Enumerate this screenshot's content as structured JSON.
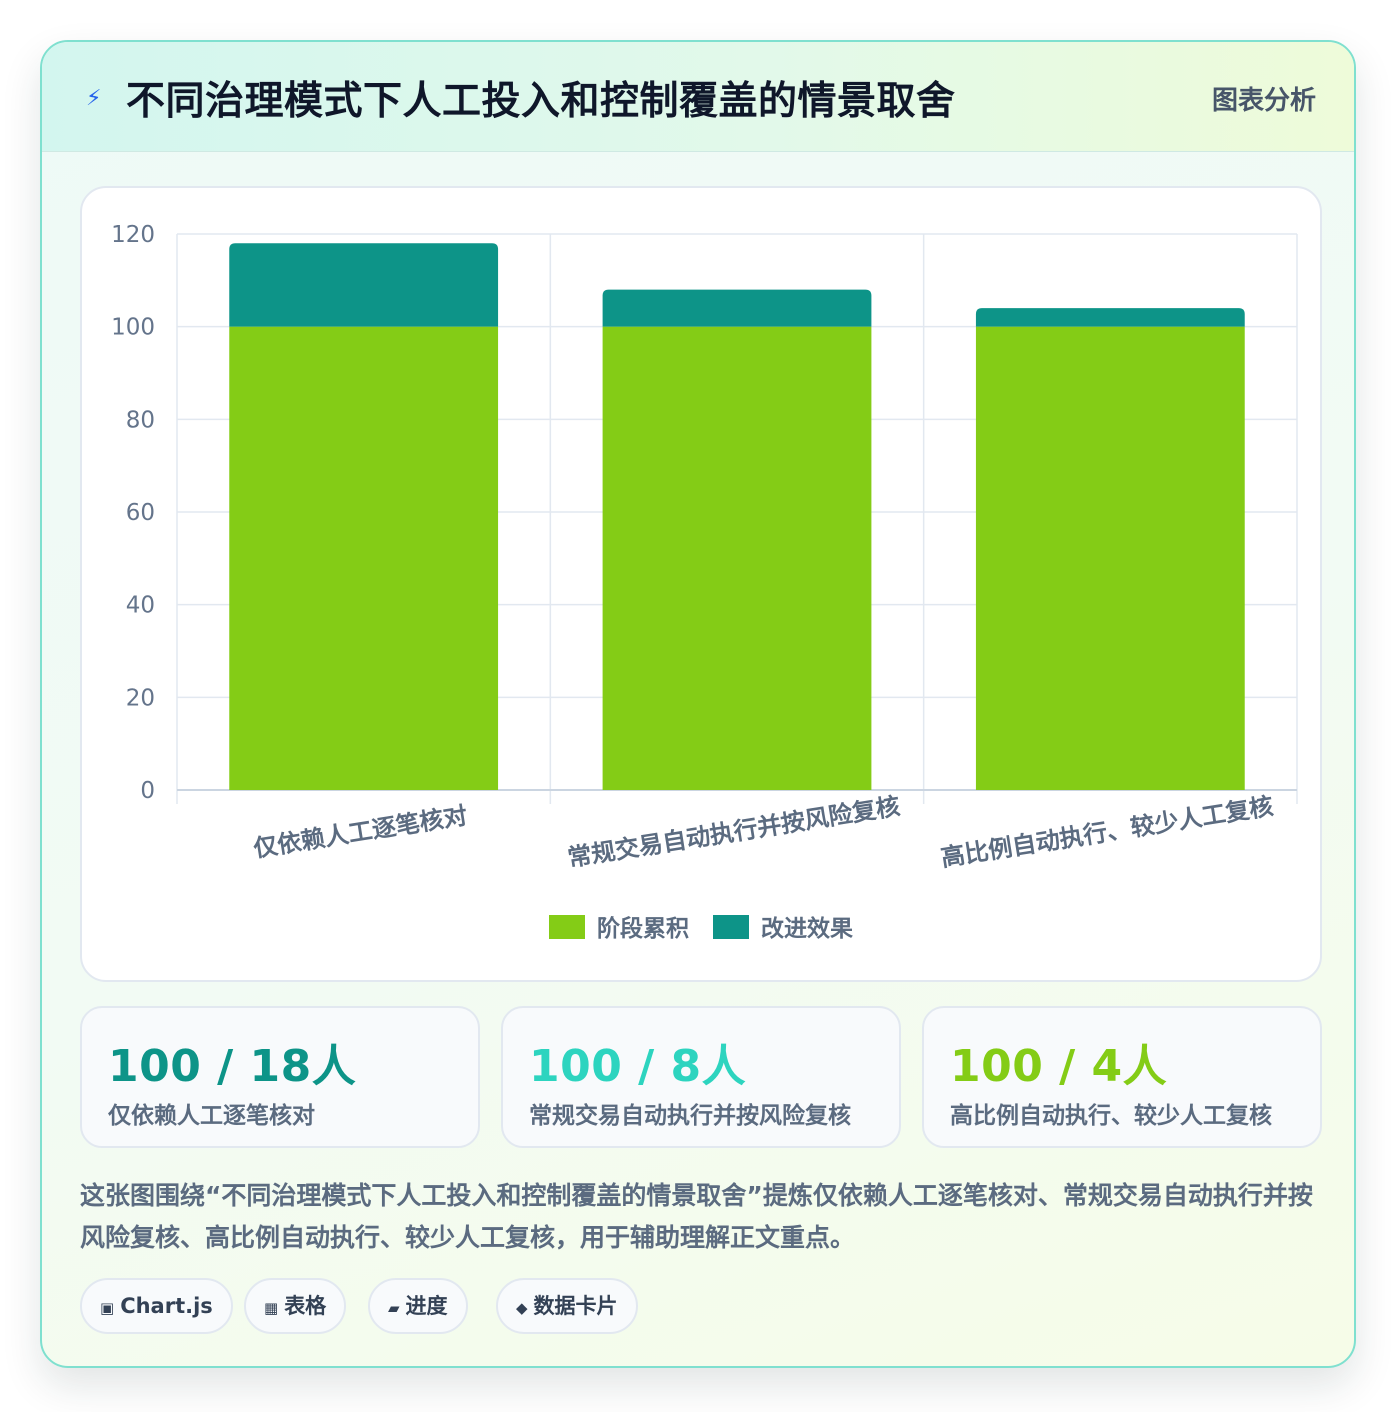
{
  "header": {
    "icon": "lightning-icon",
    "title": "不同治理模式下人工投入和控制覆盖的情景取舍",
    "badge": "图表分析"
  },
  "chart_data": {
    "type": "bar",
    "stacked": true,
    "categories": [
      "仅依赖人工逐笔核对",
      "常规交易自动执行并按风险复核",
      "高比例自动执行、较少人工复核"
    ],
    "series": [
      {
        "name": "阶段累积",
        "values": [
          100,
          100,
          100
        ],
        "color": "#84cc16"
      },
      {
        "name": "改进效果",
        "values": [
          18,
          8,
          4
        ],
        "color": "#0d9488"
      }
    ],
    "yticks": [
      "0",
      "20",
      "40",
      "60",
      "80",
      "100",
      "120"
    ],
    "ylim": [
      0,
      120
    ],
    "grid": true,
    "legend_position": "bottom"
  },
  "stats": [
    {
      "value": "100 / 18人",
      "label": "仅依赖人工逐笔核对",
      "color": "#0d9488"
    },
    {
      "value": "100 / 8人",
      "label": "常规交易自动执行并按风险复核",
      "color": "#2dd4bf"
    },
    {
      "value": "100 / 4人",
      "label": "高比例自动执行、较少人工复核",
      "color": "#84cc16"
    }
  ],
  "description": "这张图围绕“不同治理模式下人工投入和控制覆盖的情景取舍”提炼仅依赖人工逐笔核对、常规交易自动执行并按风险复核、高比例自动执行、较少人工复核，用于辅助理解正文重点。",
  "tags": [
    {
      "icon": "▣",
      "icon_name": "chip-icon",
      "label": "Chart.js"
    },
    {
      "icon": "▦",
      "icon_name": "table-icon",
      "label": "表格"
    },
    {
      "icon": "▰",
      "icon_name": "progress-icon",
      "label": "进度"
    },
    {
      "icon": "◆",
      "icon_name": "diamond-icon",
      "label": "数据卡片"
    }
  ]
}
